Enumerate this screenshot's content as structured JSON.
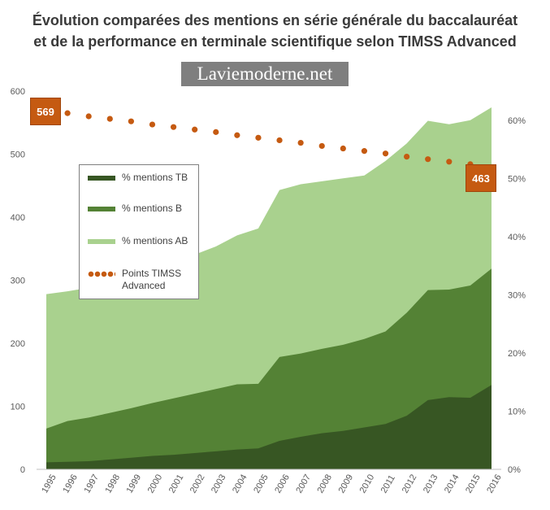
{
  "header": {
    "title_line1": "Évolution comparées des mentions en série générale du baccalauréat",
    "title_line2": "et de la performance en terminale scientifique selon TIMSS Advanced",
    "watermark": "Laviemoderne.net"
  },
  "colors": {
    "tb": "#375623",
    "b": "#548235",
    "ab": "#a9d18e",
    "timss": "#c55a11",
    "axis": "#595959"
  },
  "legend": {
    "tb": "% mentions TB",
    "b": "% mentions B",
    "ab": "% mentions AB",
    "timss": "Points TIMSS Advanced"
  },
  "callouts": {
    "start": "569",
    "end": "463"
  },
  "chart_data": {
    "type": "area",
    "x": [
      "1995",
      "1996",
      "1997",
      "1998",
      "1999",
      "2000",
      "2001",
      "2002",
      "2003",
      "2004",
      "2005",
      "2006",
      "2007",
      "2008",
      "2009",
      "2010",
      "2011",
      "2012",
      "2013",
      "2014",
      "2015",
      "2016"
    ],
    "x_ticks": [
      "1995",
      "1996",
      "1997",
      "1998",
      "1999",
      "2000",
      "2001",
      "2002",
      "2003",
      "2004",
      "2005",
      "2006",
      "2007",
      "2008",
      "2009",
      "2010",
      "2011",
      "2012",
      "2013",
      "2014",
      "2015",
      "2016"
    ],
    "series": [
      {
        "name": "% mentions TB",
        "type": "area",
        "axis": "right",
        "values": [
          1.2,
          1.3,
          1.4,
          1.7,
          2.0,
          2.3,
          2.5,
          2.8,
          3.1,
          3.4,
          3.6,
          4.9,
          5.6,
          6.2,
          6.6,
          7.2,
          7.8,
          9.2,
          11.9,
          12.4,
          12.3,
          14.5
        ]
      },
      {
        "name": "% mentions B",
        "type": "area",
        "axis": "right",
        "values": [
          7.0,
          8.3,
          8.9,
          9.7,
          10.5,
          11.4,
          12.2,
          13.0,
          13.8,
          14.6,
          14.7,
          19.3,
          19.9,
          20.7,
          21.4,
          22.4,
          23.7,
          26.9,
          30.8,
          30.9,
          31.6,
          34.5
        ]
      },
      {
        "name": "% mentions AB",
        "type": "area",
        "axis": "right",
        "values": [
          30.1,
          30.6,
          31.2,
          32.0,
          33.5,
          34.6,
          35.6,
          36.9,
          38.3,
          40.2,
          41.4,
          48.0,
          49.0,
          49.5,
          50.0,
          50.5,
          53.0,
          56.0,
          59.9,
          59.3,
          60.0,
          62.2
        ]
      },
      {
        "name": "Points TIMSS Advanced",
        "type": "line",
        "axis": "left",
        "values": [
          569,
          565,
          560,
          556,
          552,
          547,
          543,
          539,
          535,
          530,
          526,
          522,
          518,
          513,
          509,
          505,
          501,
          496,
          492,
          488,
          484,
          463
        ]
      }
    ],
    "y_left": {
      "min": 0,
      "max": 600,
      "ticks": [
        0,
        100,
        200,
        300,
        400,
        500,
        600
      ],
      "tick_labels": [
        "0",
        "100",
        "200",
        "300",
        "400",
        "500",
        "600"
      ]
    },
    "y_right": {
      "min": 0,
      "max": 65,
      "ticks": [
        0,
        10,
        20,
        30,
        40,
        50,
        60
      ],
      "tick_labels": [
        "0%",
        "10%",
        "20%",
        "30%",
        "40%",
        "50%",
        "60%"
      ]
    },
    "legend_position": "left-middle",
    "grid": false,
    "title": "Évolution comparées des mentions en série générale du baccalauréat et de la performance en terminale scientifique selon TIMSS Advanced"
  }
}
